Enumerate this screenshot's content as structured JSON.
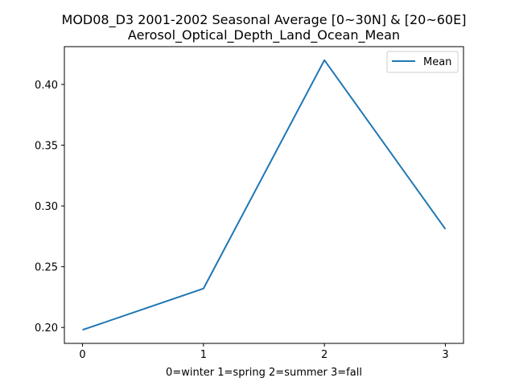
{
  "chart_data": {
    "type": "line",
    "title": "MOD08_D3 2001-2002 Seasonal Average [0~30N] & [20~60E]",
    "subtitle": "Aerosol_Optical_Depth_Land_Ocean_Mean",
    "xlabel": "0=winter 1=spring 2=summer 3=fall",
    "ylabel": "",
    "x": [
      0,
      1,
      2,
      3
    ],
    "series": [
      {
        "name": "Mean",
        "values": [
          0.198,
          0.232,
          0.42,
          0.281
        ]
      }
    ],
    "xlim": [
      -0.15,
      3.15
    ],
    "ylim": [
      0.1869,
      0.4311
    ],
    "xticks": [
      "0",
      "1",
      "2",
      "3"
    ],
    "yticks": [
      "0.20",
      "0.25",
      "0.30",
      "0.35",
      "0.40"
    ],
    "ytick_values": [
      0.2,
      0.25,
      0.3,
      0.35,
      0.4
    ],
    "grid": false,
    "legend_position": "upper right",
    "line_color": "#1f77b4"
  }
}
